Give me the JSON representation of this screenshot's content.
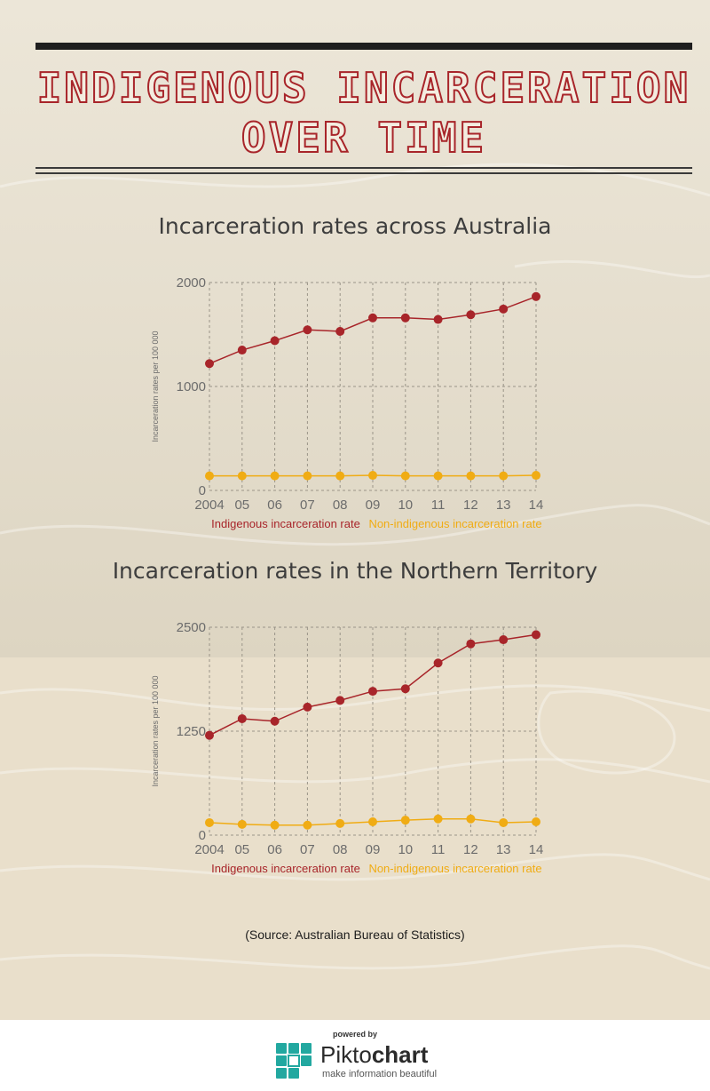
{
  "header": {
    "title_line1": "Indigenous Incarceration",
    "title_line2": "Over Time"
  },
  "source_note": "(Source: Australian Bureau of Statistics)",
  "footer": {
    "powered_by": "powered by",
    "brand_light": "Pikto",
    "brand_bold": "chart",
    "tagline": "make information beautiful"
  },
  "colors": {
    "indigenous": "#a8252a",
    "non_indigenous": "#f0ac14",
    "title": "#a8252a"
  },
  "chart_data": [
    {
      "type": "line",
      "title": "Incarceration rates across Australia",
      "ylabel": "Incarceration rates per 100 000",
      "xlabel": "",
      "categories": [
        "2004",
        "05",
        "06",
        "07",
        "08",
        "09",
        "10",
        "11",
        "12",
        "13",
        "14"
      ],
      "ylim": [
        0,
        2000
      ],
      "yticks": [
        "0",
        "1000",
        "2000"
      ],
      "grid": true,
      "legend_position": "bottom",
      "series": [
        {
          "name": "Indigenous incarceration rate",
          "color": "#a8252a",
          "values": [
            1220,
            1350,
            1440,
            1545,
            1530,
            1660,
            1660,
            1645,
            1690,
            1745,
            1865
          ]
        },
        {
          "name": "Non-indigenous incarceration rate",
          "color": "#f0ac14",
          "values": [
            140,
            140,
            140,
            140,
            140,
            145,
            140,
            140,
            140,
            140,
            145
          ]
        }
      ]
    },
    {
      "type": "line",
      "title": "Incarceration rates in the Northern Territory",
      "ylabel": "Incarceration rates per 100 000",
      "xlabel": "",
      "categories": [
        "2004",
        "05",
        "06",
        "07",
        "08",
        "09",
        "10",
        "11",
        "12",
        "13",
        "14"
      ],
      "ylim": [
        0,
        2500
      ],
      "yticks": [
        "0",
        "1250",
        "2500"
      ],
      "grid": true,
      "legend_position": "bottom",
      "series": [
        {
          "name": "Indigenous incarceration rate",
          "color": "#a8252a",
          "values": [
            1200,
            1400,
            1370,
            1540,
            1620,
            1730,
            1760,
            2070,
            2300,
            2350,
            2410
          ]
        },
        {
          "name": "Non-indigenous incarceration rate",
          "color": "#f0ac14",
          "values": [
            150,
            130,
            120,
            120,
            140,
            160,
            180,
            195,
            195,
            150,
            160
          ]
        }
      ]
    }
  ]
}
